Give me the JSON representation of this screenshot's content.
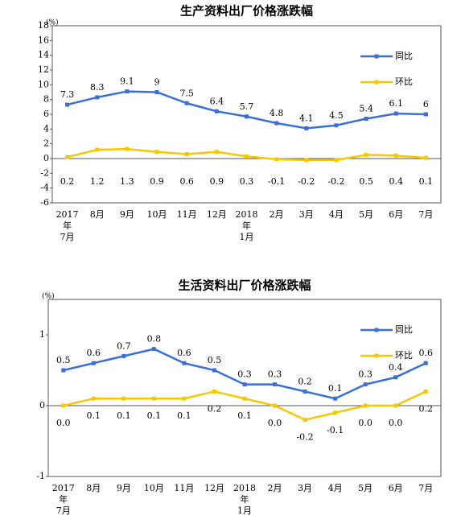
{
  "chart_data": [
    {
      "type": "line",
      "title": "生产资料出厂价格涨跌幅",
      "y_unit": "(%)",
      "categories": [
        "2017\n年\n7月",
        "8月",
        "9月",
        "10月",
        "11月",
        "12月",
        "2018\n年\n1月",
        "2月",
        "3月",
        "4月",
        "5月",
        "6月",
        "7月"
      ],
      "series": [
        {
          "name": "同比",
          "color": "#3b6fd6",
          "values": [
            7.3,
            8.3,
            9.1,
            9.0,
            7.5,
            6.4,
            5.7,
            4.8,
            4.1,
            4.5,
            5.4,
            6.1,
            6.0
          ]
        },
        {
          "name": "环比",
          "color": "#f5c800",
          "values": [
            0.2,
            1.2,
            1.3,
            0.9,
            0.6,
            0.9,
            0.3,
            -0.1,
            -0.2,
            -0.2,
            0.5,
            0.4,
            0.1
          ]
        }
      ],
      "ylim": [
        -6,
        18
      ],
      "yticks": [
        -6,
        -4,
        -2,
        0,
        2,
        4,
        6,
        8,
        10,
        12,
        14,
        16,
        18
      ]
    },
    {
      "type": "line",
      "title": "生活资料出厂价格涨跌幅",
      "y_unit": "(%)",
      "categories": [
        "2017\n年\n7月",
        "8月",
        "9月",
        "10月",
        "11月",
        "12月",
        "2018\n年\n1月",
        "2月",
        "3月",
        "4月",
        "5月",
        "6月",
        "7月"
      ],
      "series": [
        {
          "name": "同比",
          "color": "#3b6fd6",
          "values": [
            0.5,
            0.6,
            0.7,
            0.8,
            0.6,
            0.5,
            0.3,
            0.3,
            0.2,
            0.1,
            0.3,
            0.4,
            0.6
          ]
        },
        {
          "name": "环比",
          "color": "#f5c800",
          "values": [
            0.0,
            0.1,
            0.1,
            0.1,
            0.1,
            0.2,
            0.1,
            0.0,
            -0.2,
            -0.1,
            0.0,
            0.0,
            0.2
          ],
          "value_labels": [
            "0.0",
            "0.1",
            "0.1",
            "0.1",
            "0.1",
            "0.2",
            "0.1",
            "0.0",
            "-0.2",
            "-0.1",
            "0.0",
            "0.0",
            "0.2"
          ]
        }
      ],
      "ylim": [
        -1,
        1.5
      ],
      "yticks": [
        -1,
        0,
        1
      ]
    }
  ]
}
